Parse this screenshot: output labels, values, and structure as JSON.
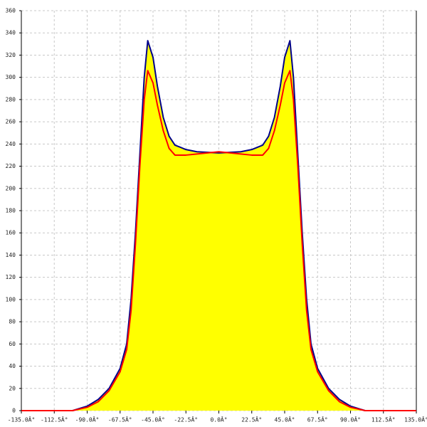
{
  "chart_data": {
    "type": "area",
    "x": [
      -135,
      -100,
      -90,
      -82.5,
      -75,
      -67.5,
      -63,
      -60,
      -57,
      -54,
      -51,
      -48.6,
      -45,
      -42,
      -38,
      -34,
      -30,
      -22.5,
      -15,
      0,
      15,
      22.5,
      30,
      34,
      38,
      42,
      45,
      48.6,
      51,
      54,
      57,
      60,
      63,
      67.5,
      75,
      82.5,
      90,
      100,
      135
    ],
    "series": [
      {
        "color": "#00008b",
        "fill": "#ffff00",
        "values": [
          0,
          0,
          4,
          10,
          20,
          38,
          60,
          100,
          160,
          230,
          300,
          333,
          318,
          292,
          264,
          247,
          239,
          235,
          233,
          232,
          233,
          235,
          239,
          247,
          264,
          292,
          318,
          333,
          300,
          230,
          160,
          100,
          60,
          38,
          20,
          10,
          4,
          0,
          0
        ]
      },
      {
        "color": "#ff0000",
        "values": [
          0,
          0,
          3,
          8,
          18,
          35,
          55,
          90,
          150,
          220,
          280,
          306,
          295,
          275,
          252,
          236,
          230,
          230,
          231,
          233,
          231,
          230,
          230,
          236,
          252,
          275,
          295,
          306,
          280,
          220,
          150,
          90,
          55,
          35,
          18,
          8,
          3,
          0,
          0
        ]
      }
    ],
    "xlim": [
      -135,
      135
    ],
    "xticks": [
      {
        "value": -135,
        "label": "-135.0Â°"
      },
      {
        "value": -112.5,
        "label": "-112.5Â°"
      },
      {
        "value": -90,
        "label": "-90.0Â°"
      },
      {
        "value": -67.5,
        "label": "-67.5Â°"
      },
      {
        "value": -45,
        "label": "-45.0Â°"
      },
      {
        "value": -22.5,
        "label": "-22.5Â°"
      },
      {
        "value": 0,
        "label": "0.0Â°"
      },
      {
        "value": 22.5,
        "label": "22.5Â°"
      },
      {
        "value": 45,
        "label": "45.0Â°"
      },
      {
        "value": 67.5,
        "label": "67.5Â°"
      },
      {
        "value": 90,
        "label": "90.0Â°"
      },
      {
        "value": 112.5,
        "label": "112.5Â°"
      },
      {
        "value": 135,
        "label": "135.0Â°"
      }
    ],
    "ylim": [
      0,
      360
    ],
    "yticks": [
      0,
      20,
      40,
      60,
      80,
      100,
      120,
      140,
      160,
      180,
      200,
      220,
      240,
      260,
      280,
      300,
      320,
      340,
      360
    ],
    "grid": true
  }
}
